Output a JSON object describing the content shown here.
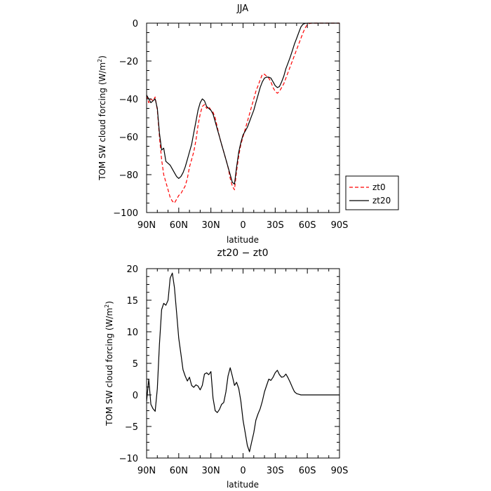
{
  "chart_data": [
    {
      "type": "line",
      "title": "JJA",
      "xlabel": "latitude",
      "ylabel": "TOM SW cloud forcing (W/m",
      "ylabel_sup": "2",
      "ylabel_close": ")",
      "xlim": [
        90,
        -90
      ],
      "ylim": [
        -100,
        0
      ],
      "xticks": [
        {
          "value": 90,
          "label": "90N"
        },
        {
          "value": 60,
          "label": "60N"
        },
        {
          "value": 30,
          "label": "30N"
        },
        {
          "value": 0,
          "label": "0"
        },
        {
          "value": -30,
          "label": "30S"
        },
        {
          "value": -60,
          "label": "60S"
        },
        {
          "value": -90,
          "label": "90S"
        }
      ],
      "yticks": [
        {
          "value": 0,
          "label": "0"
        },
        {
          "value": -20,
          "label": "−20"
        },
        {
          "value": -40,
          "label": "−40"
        },
        {
          "value": -60,
          "label": "−60"
        },
        {
          "value": -80,
          "label": "−80"
        },
        {
          "value": -100,
          "label": "−100"
        }
      ],
      "legend": {
        "position": "right-bottom-outside"
      },
      "series": [
        {
          "name": "zt0",
          "color": "#ff0000",
          "dash": "dashed",
          "x": [
            90,
            88,
            86,
            84,
            82,
            80,
            78,
            76,
            74,
            72,
            70,
            68,
            66,
            64,
            62,
            60,
            58,
            56,
            54,
            52,
            50,
            48,
            46,
            44,
            42,
            40,
            38,
            36,
            34,
            32,
            30,
            28,
            26,
            24,
            22,
            20,
            18,
            16,
            14,
            12,
            10,
            8,
            6,
            4,
            2,
            0,
            -2,
            -4,
            -6,
            -8,
            -10,
            -12,
            -14,
            -16,
            -18,
            -20,
            -22,
            -24,
            -26,
            -28,
            -30,
            -32,
            -34,
            -36,
            -38,
            -40,
            -42,
            -44,
            -46,
            -48,
            -50,
            -52,
            -54,
            -56,
            -58,
            -60,
            -62,
            -64,
            -66,
            -68,
            -70,
            -75,
            -80,
            -85,
            -90
          ],
          "y": [
            -38,
            -42,
            -40,
            -41,
            -39,
            -46,
            -60,
            -72,
            -80,
            -84,
            -88,
            -92,
            -94,
            -95,
            -93,
            -91,
            -90,
            -88,
            -86,
            -82,
            -76,
            -72,
            -68,
            -62,
            -54,
            -48,
            -44,
            -43,
            -45,
            -44,
            -46,
            -47,
            -50,
            -55,
            -60,
            -64,
            -68,
            -72,
            -76,
            -82,
            -86,
            -88,
            -78,
            -70,
            -64,
            -60,
            -56,
            -52,
            -48,
            -44,
            -40,
            -36,
            -33,
            -30,
            -27,
            -27,
            -28,
            -29,
            -31,
            -34,
            -36,
            -37,
            -36,
            -34,
            -32,
            -29,
            -26,
            -23,
            -20,
            -17,
            -14,
            -11,
            -8,
            -5,
            -2.5,
            -0.7,
            -0.2,
            0,
            0,
            0,
            0,
            0,
            0,
            0,
            0
          ]
        },
        {
          "name": "zt20",
          "color": "#000000",
          "dash": "solid",
          "x": [
            90,
            88,
            86,
            84,
            82,
            80,
            78,
            76,
            74,
            72,
            70,
            68,
            66,
            64,
            62,
            60,
            58,
            56,
            54,
            52,
            50,
            48,
            46,
            44,
            42,
            40,
            38,
            36,
            34,
            32,
            30,
            28,
            26,
            24,
            22,
            20,
            18,
            16,
            14,
            12,
            10,
            8,
            6,
            4,
            2,
            0,
            -2,
            -4,
            -6,
            -8,
            -10,
            -12,
            -14,
            -16,
            -18,
            -20,
            -22,
            -24,
            -26,
            -28,
            -30,
            -32,
            -34,
            -36,
            -38,
            -40,
            -42,
            -44,
            -46,
            -48,
            -50,
            -52,
            -54,
            -56,
            -58,
            -60,
            -62,
            -64,
            -66,
            -68,
            -70,
            -75,
            -80,
            -85,
            -90
          ],
          "y": [
            -38,
            -40,
            -42,
            -41,
            -40,
            -45,
            -58,
            -67,
            -66,
            -73,
            -74,
            -75,
            -77,
            -79,
            -81,
            -82,
            -81,
            -79,
            -76,
            -72,
            -68,
            -64,
            -58,
            -52,
            -46,
            -42,
            -40,
            -41,
            -44,
            -45,
            -46,
            -48,
            -52,
            -56,
            -60,
            -64,
            -68,
            -72,
            -76,
            -80,
            -84,
            -85,
            -76,
            -68,
            -63,
            -59,
            -57,
            -55,
            -52,
            -49,
            -46,
            -42,
            -38,
            -34,
            -31,
            -29,
            -28.5,
            -28.5,
            -29,
            -31,
            -33,
            -34,
            -33.5,
            -31,
            -28,
            -24,
            -21,
            -18,
            -14.5,
            -11,
            -8,
            -5,
            -2,
            -0.5,
            -0.1,
            0,
            0,
            0,
            0,
            0,
            0,
            0,
            0,
            0,
            0
          ]
        }
      ]
    },
    {
      "type": "line",
      "title": "zt20 − zt0",
      "xlabel": "latitude",
      "ylabel": "TOM SW cloud forcing (W/m",
      "ylabel_sup": "2",
      "ylabel_close": ")",
      "xlim": [
        90,
        -90
      ],
      "ylim": [
        -10,
        20
      ],
      "xticks": [
        {
          "value": 90,
          "label": "90N"
        },
        {
          "value": 60,
          "label": "60N"
        },
        {
          "value": 30,
          "label": "30N"
        },
        {
          "value": 0,
          "label": "0"
        },
        {
          "value": -30,
          "label": "30S"
        },
        {
          "value": -60,
          "label": "60S"
        },
        {
          "value": -90,
          "label": "90S"
        }
      ],
      "yticks": [
        {
          "value": 20,
          "label": "20"
        },
        {
          "value": 15,
          "label": "15"
        },
        {
          "value": 10,
          "label": "10"
        },
        {
          "value": 5,
          "label": "5"
        },
        {
          "value": 0,
          "label": "0"
        },
        {
          "value": -5,
          "label": "−5"
        },
        {
          "value": -10,
          "label": "−10"
        }
      ],
      "series": [
        {
          "color": "#000000",
          "dash": "solid",
          "x": [
            90,
            88,
            86,
            84,
            82,
            80,
            78,
            76,
            74,
            72,
            70,
            68,
            66,
            64,
            62,
            60,
            58,
            56,
            54,
            52,
            50,
            48,
            46,
            44,
            42,
            40,
            38,
            36,
            34,
            32,
            30,
            28,
            26,
            24,
            22,
            20,
            18,
            16,
            14,
            12,
            10,
            8,
            6,
            4,
            2,
            0,
            -2,
            -4,
            -6,
            -8,
            -10,
            -12,
            -14,
            -16,
            -18,
            -20,
            -22,
            -24,
            -26,
            -28,
            -30,
            -32,
            -34,
            -36,
            -38,
            -40,
            -42,
            -44,
            -46,
            -48,
            -50,
            -52,
            -54,
            -56,
            -58,
            -60,
            -62,
            -64,
            -66,
            -70,
            -75,
            -80,
            -85,
            -90
          ],
          "y": [
            -1,
            2.5,
            -1.5,
            -2.2,
            -2.6,
            1,
            8,
            13.5,
            14.5,
            14.2,
            15,
            18.5,
            19.3,
            17,
            13,
            9,
            6.5,
            4,
            3,
            2.2,
            2.8,
            1.5,
            1.2,
            1.6,
            1.4,
            0.8,
            1.5,
            3.3,
            3.5,
            3.2,
            3.7,
            -0.5,
            -2.5,
            -2.8,
            -2.3,
            -1.5,
            -1.2,
            0.5,
            3,
            4.3,
            3,
            1.5,
            2,
            1,
            -1,
            -4,
            -6,
            -8,
            -9,
            -7.5,
            -6,
            -4,
            -3,
            -2.2,
            -1,
            0.5,
            1.5,
            2.5,
            2.3,
            2.8,
            3.5,
            3.9,
            3.2,
            2.8,
            2.9,
            3.3,
            2.7,
            2,
            1.2,
            0.5,
            0.2,
            0.1,
            0,
            0,
            0,
            0,
            0,
            0,
            0,
            0,
            0,
            0,
            0,
            0
          ]
        }
      ]
    }
  ]
}
